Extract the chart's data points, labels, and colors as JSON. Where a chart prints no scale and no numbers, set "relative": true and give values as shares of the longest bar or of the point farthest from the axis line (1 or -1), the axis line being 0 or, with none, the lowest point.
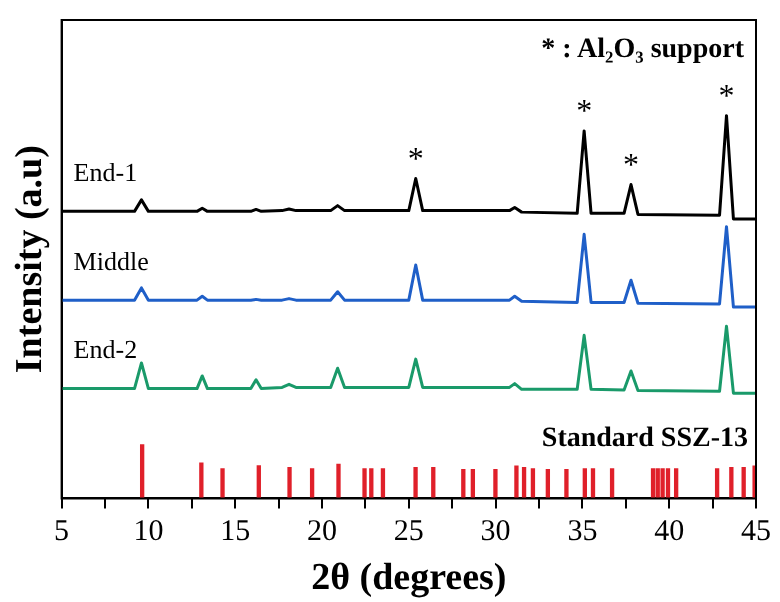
{
  "chart_data": {
    "type": "line",
    "relative": true,
    "xlabel": "2θ (degrees)",
    "ylabel": "Intensity (a.u)",
    "xlim": [
      5,
      45
    ],
    "xticks": [
      5,
      {
        "value": 7.5,
        "label": null
      },
      10,
      {
        "value": 12.5,
        "label": null
      },
      15,
      {
        "value": 17.5,
        "label": null
      },
      20,
      {
        "value": 22.5,
        "label": null
      },
      25,
      {
        "value": 27.5,
        "label": null
      },
      30,
      {
        "value": 32.5,
        "label": null
      },
      35,
      {
        "value": 37.5,
        "label": null
      },
      40,
      {
        "value": 42.5,
        "label": null
      },
      45
    ],
    "legend": false,
    "grid": false,
    "marker": "none",
    "line_style": "solid",
    "annotations": [
      "* : Al₂O₃ support",
      {
        "text": "*",
        "x": 25.4,
        "y": 0.836
      },
      {
        "text": "*",
        "x": 35.1,
        "y": 0.96
      },
      {
        "text": "*",
        "x": 37.8,
        "y": 0.82
      },
      {
        "text": "*",
        "x": 43.3,
        "y": 1.0
      }
    ],
    "series": [
      {
        "name": "End-1",
        "color": "#000000",
        "x": [
          5,
          9.2,
          9.6,
          10,
          12.8,
          13.1,
          13.4,
          15.9,
          16.2,
          16.5,
          17.7,
          18.1,
          18.5,
          20.5,
          20.9,
          21.3,
          25,
          25.4,
          25.8,
          30.8,
          31.1,
          31.5,
          34.7,
          35.1,
          35.5,
          37.4,
          37.8,
          38.2,
          42.9,
          43.3,
          43.7,
          45
        ],
        "values": [
          0.75,
          0.75,
          0.78,
          0.75,
          0.75,
          0.758,
          0.75,
          0.75,
          0.755,
          0.75,
          0.752,
          0.756,
          0.752,
          0.752,
          0.765,
          0.752,
          0.752,
          0.836,
          0.752,
          0.752,
          0.76,
          0.748,
          0.745,
          0.96,
          0.745,
          0.745,
          0.82,
          0.742,
          0.74,
          1.0,
          0.73,
          0.73
        ]
      },
      {
        "name": "Middle",
        "color": "#1f5fc8",
        "x": [
          5,
          9.2,
          9.6,
          10,
          12.8,
          13.1,
          13.4,
          15.9,
          16.2,
          16.5,
          17.7,
          18.1,
          18.5,
          20.5,
          20.9,
          21.3,
          25,
          25.4,
          25.8,
          30.8,
          31.1,
          31.5,
          34.7,
          35.1,
          35.5,
          37.4,
          37.8,
          38.2,
          42.9,
          43.3,
          43.7,
          45
        ],
        "values": [
          0.518,
          0.518,
          0.55,
          0.518,
          0.518,
          0.528,
          0.518,
          0.518,
          0.52,
          0.518,
          0.518,
          0.522,
          0.518,
          0.518,
          0.54,
          0.518,
          0.518,
          0.61,
          0.518,
          0.518,
          0.528,
          0.515,
          0.512,
          0.69,
          0.512,
          0.512,
          0.57,
          0.51,
          0.508,
          0.71,
          0.5,
          0.5
        ]
      },
      {
        "name": "End-2",
        "color": "#1a9a6a",
        "x": [
          5,
          9.2,
          9.6,
          10,
          12.8,
          13.1,
          13.4,
          15.9,
          16.2,
          16.5,
          17.7,
          18.1,
          18.5,
          20.5,
          20.9,
          21.3,
          25,
          25.4,
          25.8,
          30.8,
          31.1,
          31.5,
          34.7,
          35.1,
          35.5,
          37.4,
          37.8,
          38.2,
          42.9,
          43.3,
          43.7,
          45
        ],
        "values": [
          0.287,
          0.287,
          0.354,
          0.287,
          0.287,
          0.32,
          0.287,
          0.287,
          0.31,
          0.287,
          0.29,
          0.298,
          0.29,
          0.29,
          0.34,
          0.29,
          0.29,
          0.364,
          0.29,
          0.29,
          0.3,
          0.285,
          0.285,
          0.426,
          0.285,
          0.283,
          0.333,
          0.282,
          0.28,
          0.45,
          0.275,
          0.275
        ]
      },
      {
        "name": "Standard SSZ-13",
        "type": "bar",
        "color": "#e0202a",
        "x": [
          9.64,
          13.05,
          14.27,
          16.36,
          18.13,
          19.43,
          20.95,
          22.45,
          22.84,
          23.51,
          25.39,
          26.41,
          28.14,
          28.69,
          29.99,
          31.2,
          31.64,
          32.15,
          33.01,
          34.08,
          35.14,
          35.61,
          36.71,
          39.07,
          39.34,
          39.62,
          39.93,
          40.4,
          42.76,
          43.58,
          44.29,
          44.92
        ],
        "values": [
          0.14,
          0.092,
          0.077,
          0.085,
          0.08,
          0.077,
          0.089,
          0.077,
          0.077,
          0.077,
          0.08,
          0.08,
          0.075,
          0.075,
          0.075,
          0.084,
          0.08,
          0.077,
          0.075,
          0.075,
          0.077,
          0.077,
          0.077,
          0.077,
          0.077,
          0.077,
          0.077,
          0.077,
          0.077,
          0.08,
          0.08,
          0.084
        ]
      }
    ]
  }
}
